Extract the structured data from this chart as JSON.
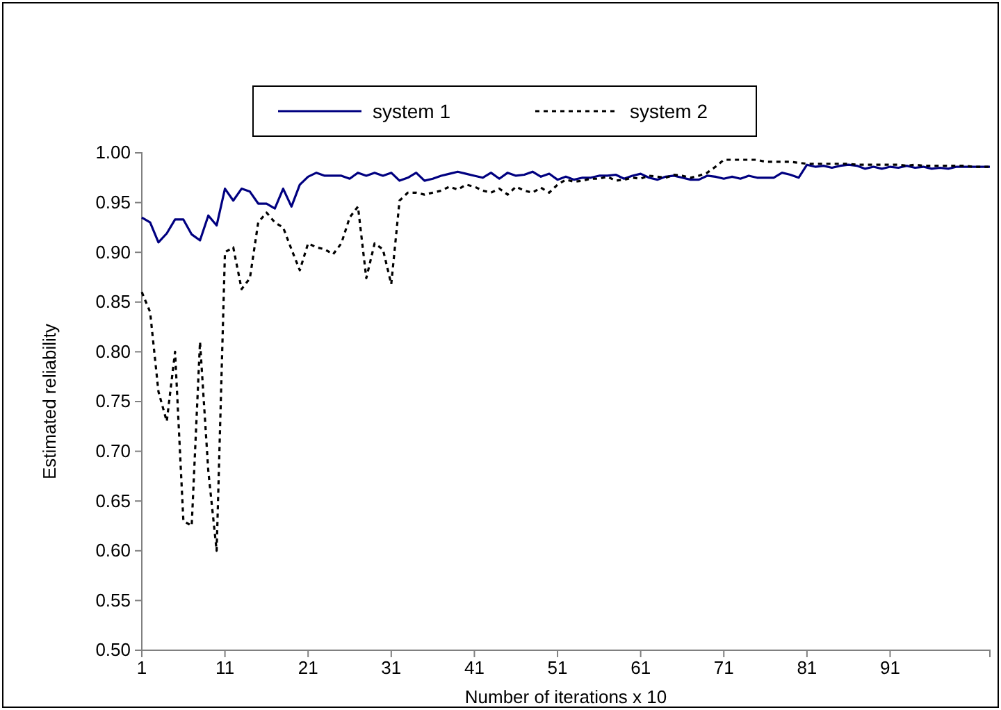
{
  "chart_data": {
    "type": "line",
    "xlabel": "Number of iterations x 10",
    "ylabel": "Estimated reliability",
    "x": [
      1,
      2,
      3,
      4,
      5,
      6,
      7,
      8,
      9,
      10,
      11,
      12,
      13,
      14,
      15,
      16,
      17,
      18,
      19,
      20,
      21,
      22,
      23,
      24,
      25,
      26,
      27,
      28,
      29,
      30,
      31,
      32,
      33,
      34,
      35,
      36,
      37,
      38,
      39,
      40,
      41,
      42,
      43,
      44,
      45,
      46,
      47,
      48,
      49,
      50,
      51,
      52,
      53,
      54,
      55,
      56,
      57,
      58,
      59,
      60,
      61,
      62,
      63,
      64,
      65,
      66,
      67,
      68,
      69,
      70,
      71,
      72,
      73,
      74,
      75,
      76,
      77,
      78,
      79,
      80,
      81,
      82,
      83,
      84,
      85,
      86,
      87,
      88,
      89,
      90,
      91,
      92,
      93,
      94,
      95,
      96,
      97,
      98,
      99,
      100,
      101,
      102,
      103
    ],
    "series": [
      {
        "name": "system 1",
        "color": "#000080",
        "line_style": "solid",
        "values": [
          0.935,
          0.93,
          0.91,
          0.919,
          0.933,
          0.933,
          0.918,
          0.912,
          0.937,
          0.927,
          0.964,
          0.952,
          0.964,
          0.961,
          0.949,
          0.949,
          0.944,
          0.964,
          0.946,
          0.968,
          0.976,
          0.98,
          0.977,
          0.977,
          0.977,
          0.974,
          0.98,
          0.977,
          0.98,
          0.977,
          0.98,
          0.972,
          0.975,
          0.98,
          0.972,
          0.974,
          0.977,
          0.979,
          0.981,
          0.979,
          0.977,
          0.975,
          0.98,
          0.974,
          0.98,
          0.977,
          0.978,
          0.981,
          0.976,
          0.979,
          0.973,
          0.976,
          0.973,
          0.975,
          0.975,
          0.977,
          0.977,
          0.978,
          0.974,
          0.977,
          0.979,
          0.975,
          0.973,
          0.976,
          0.977,
          0.975,
          0.973,
          0.973,
          0.977,
          0.976,
          0.974,
          0.976,
          0.974,
          0.977,
          0.975,
          0.975,
          0.975,
          0.98,
          0.978,
          0.975,
          0.988,
          0.986,
          0.987,
          0.985,
          0.987,
          0.988,
          0.987,
          0.984,
          0.986,
          0.984,
          0.986,
          0.985,
          0.987,
          0.985,
          0.986,
          0.984,
          0.985,
          0.984,
          0.986,
          0.986,
          0.986,
          0.986,
          0.986
        ]
      },
      {
        "name": "system 2",
        "color": "#000000",
        "line_style": "dotted",
        "values": [
          0.86,
          0.84,
          0.76,
          0.73,
          0.8,
          0.63,
          0.625,
          0.81,
          0.68,
          0.6,
          0.9,
          0.905,
          0.863,
          0.874,
          0.93,
          0.94,
          0.93,
          0.925,
          0.903,
          0.882,
          0.909,
          0.905,
          0.903,
          0.898,
          0.909,
          0.935,
          0.946,
          0.874,
          0.909,
          0.903,
          0.868,
          0.952,
          0.96,
          0.96,
          0.958,
          0.96,
          0.962,
          0.966,
          0.963,
          0.968,
          0.966,
          0.962,
          0.96,
          0.964,
          0.958,
          0.966,
          0.962,
          0.96,
          0.965,
          0.96,
          0.968,
          0.973,
          0.971,
          0.972,
          0.974,
          0.974,
          0.976,
          0.972,
          0.973,
          0.975,
          0.974,
          0.977,
          0.976,
          0.975,
          0.978,
          0.977,
          0.975,
          0.977,
          0.98,
          0.986,
          0.993,
          0.993,
          0.993,
          0.993,
          0.993,
          0.991,
          0.991,
          0.991,
          0.991,
          0.99,
          0.989,
          0.989,
          0.989,
          0.989,
          0.989,
          0.989,
          0.988,
          0.988,
          0.988,
          0.988,
          0.988,
          0.988,
          0.987,
          0.988,
          0.987,
          0.987,
          0.987,
          0.987,
          0.987,
          0.987,
          0.986,
          0.986,
          0.986
        ]
      }
    ],
    "xlim": [
      1,
      103
    ],
    "xticks": [
      1,
      11,
      21,
      31,
      41,
      51,
      61,
      71,
      81,
      91
    ],
    "ylim": [
      0.5,
      1.0
    ],
    "yticks": [
      {
        "value": 0.5,
        "label": "0.50"
      },
      {
        "value": 0.55,
        "label": "0.55"
      },
      {
        "value": 0.6,
        "label": "0.60"
      },
      {
        "value": 0.65,
        "label": "0.65"
      },
      {
        "value": 0.7,
        "label": "0.70"
      },
      {
        "value": 0.75,
        "label": "0.75"
      },
      {
        "value": 0.8,
        "label": "0.80"
      },
      {
        "value": 0.85,
        "label": "0.85"
      },
      {
        "value": 0.9,
        "label": "0.90"
      },
      {
        "value": 0.95,
        "label": "0.95"
      },
      {
        "value": 1.0,
        "label": "1.00"
      }
    ],
    "grid": false,
    "legend": "top",
    "marker": "none"
  }
}
